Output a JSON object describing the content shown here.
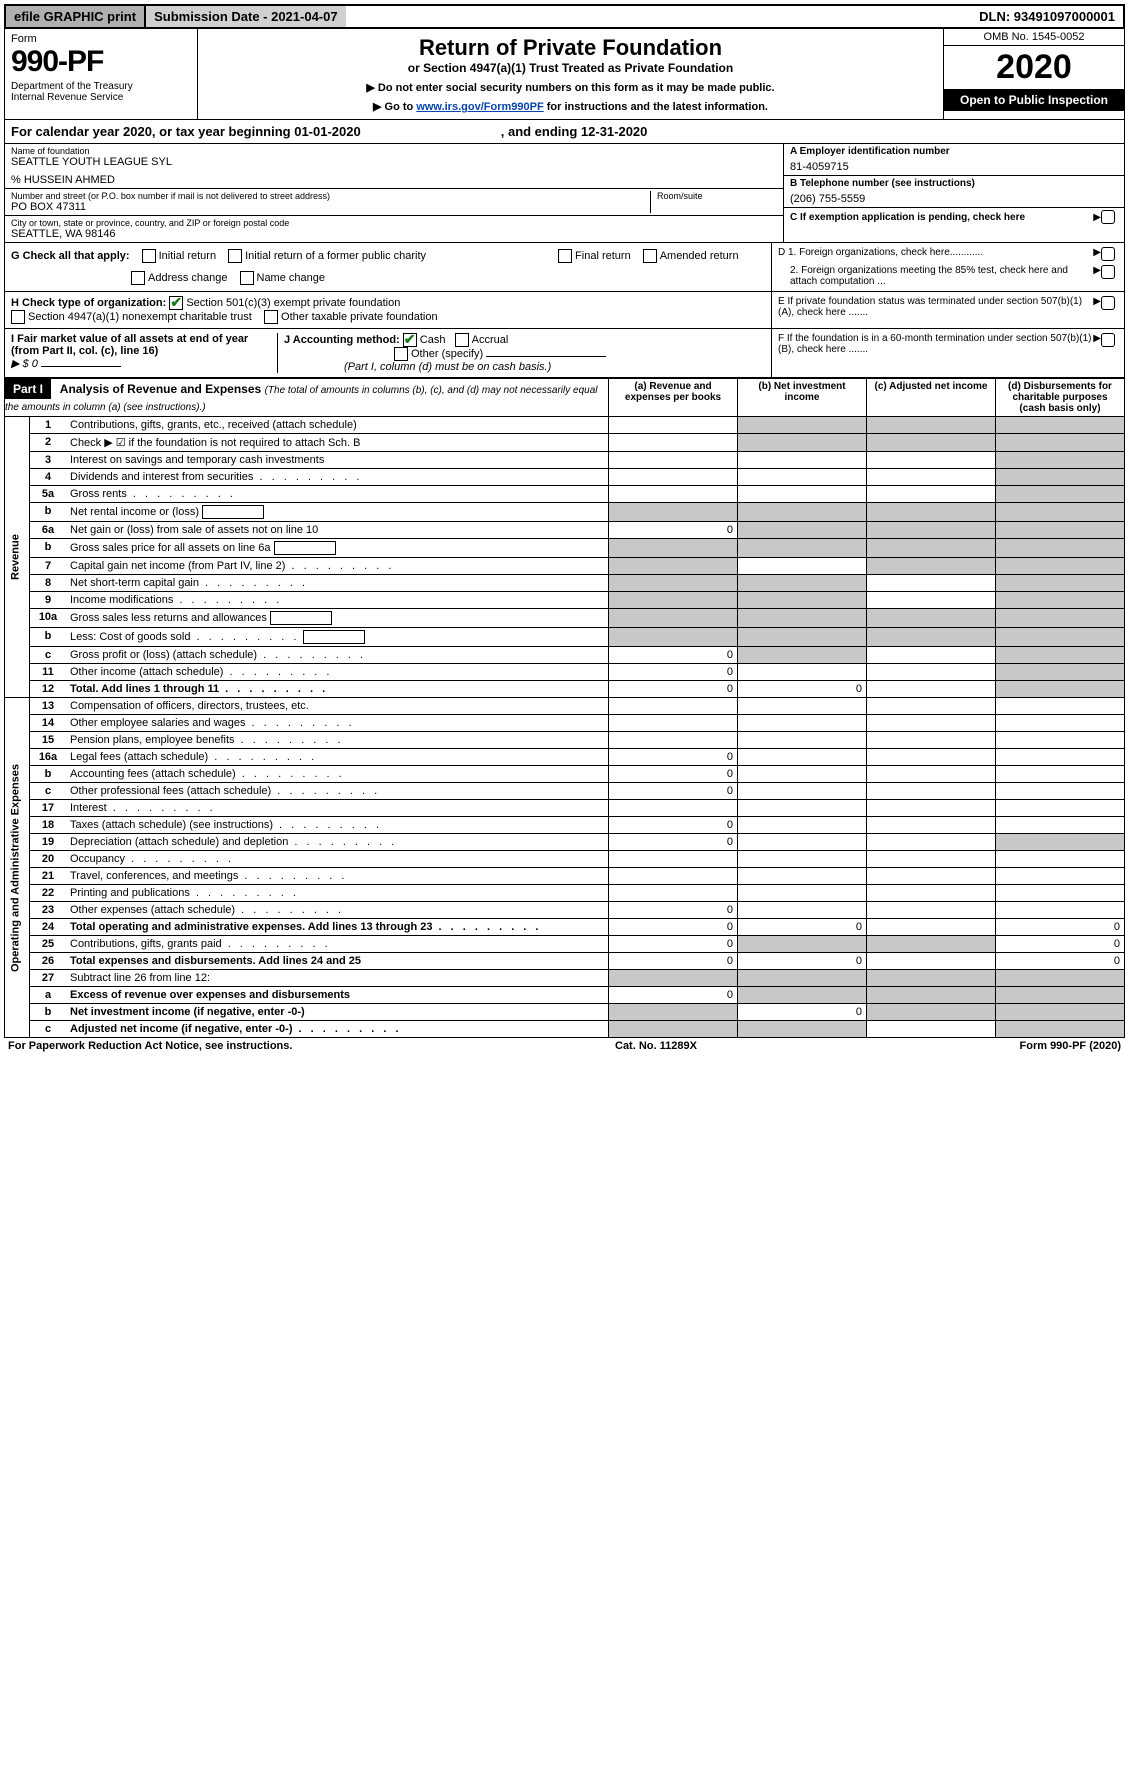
{
  "topbar": {
    "efile": "efile GRAPHIC print",
    "subdate_label": "Submission Date - 2021-04-07",
    "dln": "DLN: 93491097000001"
  },
  "header": {
    "form_label": "Form",
    "form_num": "990-PF",
    "dept": "Department of the Treasury\nInternal Revenue Service",
    "title": "Return of Private Foundation",
    "subtitle": "or Section 4947(a)(1) Trust Treated as Private Foundation",
    "instr1": "▶ Do not enter social security numbers on this form as it may be made public.",
    "instr2_pre": "▶ Go to ",
    "instr2_link": "www.irs.gov/Form990PF",
    "instr2_post": " for instructions and the latest information.",
    "omb": "OMB No. 1545-0052",
    "year": "2020",
    "open": "Open to Public Inspection"
  },
  "calyear": {
    "pre": "For calendar year 2020, or tax year beginning 01-01-2020",
    "post": ", and ending 12-31-2020"
  },
  "info": {
    "name_label": "Name of foundation",
    "name": "SEATTLE YOUTH LEAGUE SYL",
    "care_of": "% HUSSEIN AHMED",
    "addr_label": "Number and street (or P.O. box number if mail is not delivered to street address)",
    "addr": "PO BOX 47311",
    "room_label": "Room/suite",
    "city_label": "City or town, state or province, country, and ZIP or foreign postal code",
    "city": "SEATTLE, WA  98146",
    "ein_label": "A Employer identification number",
    "ein": "81-4059715",
    "phone_label": "B Telephone number (see instructions)",
    "phone": "(206) 755-5559",
    "c_label": "C If exemption application is pending, check here",
    "d1": "D 1. Foreign organizations, check here............",
    "d2": "2. Foreign organizations meeting the 85% test, check here and attach computation ...",
    "e": "E  If private foundation status was terminated under section 507(b)(1)(A), check here .......",
    "f": "F  If the foundation is in a 60-month termination under section 507(b)(1)(B), check here ......."
  },
  "g": {
    "label": "G Check all that apply:",
    "opts": [
      "Initial return",
      "Initial return of a former public charity",
      "Final return",
      "Amended return",
      "Address change",
      "Name change"
    ]
  },
  "h": {
    "label": "H Check type of organization:",
    "opt1": "Section 501(c)(3) exempt private foundation",
    "opt2": "Section 4947(a)(1) nonexempt charitable trust",
    "opt3": "Other taxable private foundation"
  },
  "i": {
    "label": "I Fair market value of all assets at end of year (from Part II, col. (c), line 16)",
    "val": "▶ $  0"
  },
  "j": {
    "label": "J Accounting method:",
    "cash": "Cash",
    "accrual": "Accrual",
    "other": "Other (specify)",
    "note": "(Part I, column (d) must be on cash basis.)"
  },
  "part1": {
    "title": "Part I",
    "header": "Analysis of Revenue and Expenses",
    "header_note": "(The total of amounts in columns (b), (c), and (d) may not necessarily equal the amounts in column (a) (see instructions).)",
    "cols": {
      "a": "(a)   Revenue and expenses per books",
      "b": "(b)  Net investment income",
      "c": "(c)  Adjusted net income",
      "d": "(d)  Disbursements for charitable purposes (cash basis only)"
    }
  },
  "revenue_label": "Revenue",
  "expenses_label": "Operating and Administrative Expenses",
  "rows": [
    {
      "n": "1",
      "t": "Contributions, gifts, grants, etc., received (attach schedule)",
      "a": "",
      "b": "s",
      "c": "s",
      "d": "s"
    },
    {
      "n": "2",
      "t": "Check ▶ ☑ if the foundation is not required to attach Sch. B",
      "a": "",
      "b": "s",
      "c": "s",
      "d": "s",
      "nb": true
    },
    {
      "n": "3",
      "t": "Interest on savings and temporary cash investments",
      "a": "",
      "b": "",
      "c": "",
      "d": "s"
    },
    {
      "n": "4",
      "t": "Dividends and interest from securities",
      "dots": true,
      "a": "",
      "b": "",
      "c": "",
      "d": "s"
    },
    {
      "n": "5a",
      "t": "Gross rents",
      "dots": true,
      "a": "",
      "b": "",
      "c": "",
      "d": "s"
    },
    {
      "n": "b",
      "t": "Net rental income or (loss)",
      "input": true,
      "a": "s",
      "b": "s",
      "c": "s",
      "d": "s"
    },
    {
      "n": "6a",
      "t": "Net gain or (loss) from sale of assets not on line 10",
      "a": "0",
      "b": "s",
      "c": "s",
      "d": "s"
    },
    {
      "n": "b",
      "t": "Gross sales price for all assets on line 6a",
      "input": true,
      "a": "s",
      "b": "s",
      "c": "s",
      "d": "s"
    },
    {
      "n": "7",
      "t": "Capital gain net income (from Part IV, line 2)",
      "dots": true,
      "a": "s",
      "b": "",
      "c": "s",
      "d": "s"
    },
    {
      "n": "8",
      "t": "Net short-term capital gain",
      "dots": true,
      "a": "s",
      "b": "s",
      "c": "",
      "d": "s"
    },
    {
      "n": "9",
      "t": "Income modifications",
      "dots": true,
      "a": "s",
      "b": "s",
      "c": "",
      "d": "s"
    },
    {
      "n": "10a",
      "t": "Gross sales less returns and allowances",
      "input": true,
      "a": "s",
      "b": "s",
      "c": "s",
      "d": "s"
    },
    {
      "n": "b",
      "t": "Less: Cost of goods sold",
      "dots": true,
      "input": true,
      "a": "s",
      "b": "s",
      "c": "s",
      "d": "s"
    },
    {
      "n": "c",
      "t": "Gross profit or (loss) (attach schedule)",
      "dots": true,
      "a": "0",
      "b": "s",
      "c": "",
      "d": "s"
    },
    {
      "n": "11",
      "t": "Other income (attach schedule)",
      "dots": true,
      "a": "0",
      "b": "",
      "c": "",
      "d": "s"
    },
    {
      "n": "12",
      "t": "Total. Add lines 1 through 11",
      "dots": true,
      "bold": true,
      "a": "0",
      "b": "0",
      "c": "",
      "d": "s"
    }
  ],
  "exp_rows": [
    {
      "n": "13",
      "t": "Compensation of officers, directors, trustees, etc.",
      "a": "",
      "b": "",
      "c": "",
      "d": ""
    },
    {
      "n": "14",
      "t": "Other employee salaries and wages",
      "dots": true,
      "a": "",
      "b": "",
      "c": "",
      "d": ""
    },
    {
      "n": "15",
      "t": "Pension plans, employee benefits",
      "dots": true,
      "a": "",
      "b": "",
      "c": "",
      "d": ""
    },
    {
      "n": "16a",
      "t": "Legal fees (attach schedule)",
      "dots": true,
      "a": "0",
      "b": "",
      "c": "",
      "d": ""
    },
    {
      "n": "b",
      "t": "Accounting fees (attach schedule)",
      "dots": true,
      "a": "0",
      "b": "",
      "c": "",
      "d": ""
    },
    {
      "n": "c",
      "t": "Other professional fees (attach schedule)",
      "dots": true,
      "a": "0",
      "b": "",
      "c": "",
      "d": ""
    },
    {
      "n": "17",
      "t": "Interest",
      "dots": true,
      "a": "",
      "b": "",
      "c": "",
      "d": ""
    },
    {
      "n": "18",
      "t": "Taxes (attach schedule) (see instructions)",
      "dots": true,
      "a": "0",
      "b": "",
      "c": "",
      "d": ""
    },
    {
      "n": "19",
      "t": "Depreciation (attach schedule) and depletion",
      "dots": true,
      "a": "0",
      "b": "",
      "c": "",
      "d": "s"
    },
    {
      "n": "20",
      "t": "Occupancy",
      "dots": true,
      "a": "",
      "b": "",
      "c": "",
      "d": ""
    },
    {
      "n": "21",
      "t": "Travel, conferences, and meetings",
      "dots": true,
      "a": "",
      "b": "",
      "c": "",
      "d": ""
    },
    {
      "n": "22",
      "t": "Printing and publications",
      "dots": true,
      "a": "",
      "b": "",
      "c": "",
      "d": ""
    },
    {
      "n": "23",
      "t": "Other expenses (attach schedule)",
      "dots": true,
      "a": "0",
      "b": "",
      "c": "",
      "d": ""
    },
    {
      "n": "24",
      "t": "Total operating and administrative expenses. Add lines 13 through 23",
      "dots": true,
      "bold": true,
      "a": "0",
      "b": "0",
      "c": "",
      "d": "0"
    },
    {
      "n": "25",
      "t": "Contributions, gifts, grants paid",
      "dots": true,
      "a": "0",
      "b": "s",
      "c": "s",
      "d": "0"
    },
    {
      "n": "26",
      "t": "Total expenses and disbursements. Add lines 24 and 25",
      "bold": true,
      "a": "0",
      "b": "0",
      "c": "",
      "d": "0"
    },
    {
      "n": "27",
      "t": "Subtract line 26 from line 12:",
      "a": "s",
      "b": "s",
      "c": "s",
      "d": "s"
    },
    {
      "n": "a",
      "t": "Excess of revenue over expenses and disbursements",
      "bold": true,
      "a": "0",
      "b": "s",
      "c": "s",
      "d": "s"
    },
    {
      "n": "b",
      "t": "Net investment income (if negative, enter -0-)",
      "bold": true,
      "a": "s",
      "b": "0",
      "c": "s",
      "d": "s"
    },
    {
      "n": "c",
      "t": "Adjusted net income (if negative, enter -0-)",
      "dots": true,
      "bold": true,
      "a": "s",
      "b": "s",
      "c": "",
      "d": "s"
    }
  ],
  "footer": {
    "left": "For Paperwork Reduction Act Notice, see instructions.",
    "mid": "Cat. No. 11289X",
    "right": "Form 990-PF (2020)"
  }
}
